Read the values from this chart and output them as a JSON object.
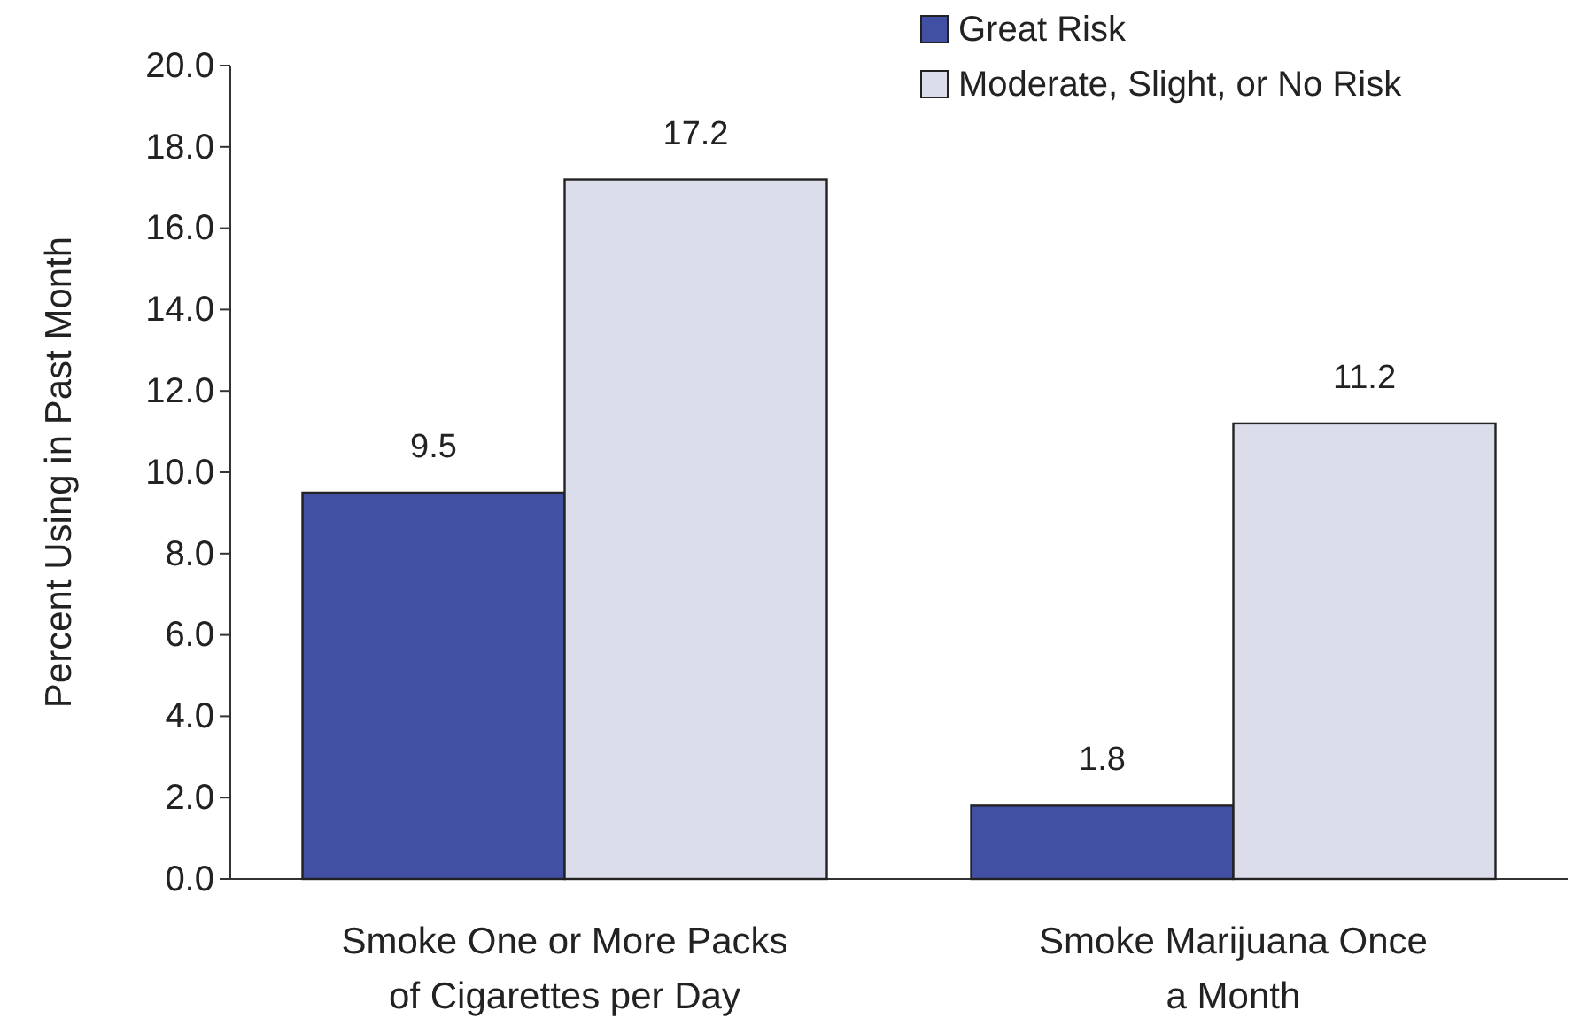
{
  "chart_data": {
    "type": "bar",
    "ylabel": "Percent Using in Past Month",
    "categories": [
      "Smoke One or More Packs\nof Cigarettes per Day",
      "Smoke Marijuana Once\na Month"
    ],
    "series": [
      {
        "name": "Great Risk",
        "color": "#4150a2",
        "values": [
          9.5,
          1.8
        ]
      },
      {
        "name": "Moderate, Slight, or No Risk",
        "color": "#dcddeb",
        "values": [
          17.2,
          11.2
        ]
      }
    ],
    "ylim": [
      0,
      20
    ],
    "yticks": [
      {
        "value": 0,
        "label": "0.0"
      },
      {
        "value": 2,
        "label": "2.0"
      },
      {
        "value": 4,
        "label": "4.0"
      },
      {
        "value": 6,
        "label": "6.0"
      },
      {
        "value": 8,
        "label": "8.0"
      },
      {
        "value": 10,
        "label": "10.0"
      },
      {
        "value": 12,
        "label": "12.0"
      },
      {
        "value": 14,
        "label": "14.0"
      },
      {
        "value": 16,
        "label": "16.0"
      },
      {
        "value": 18,
        "label": "18.0"
      },
      {
        "value": 20,
        "label": "20.0"
      }
    ],
    "data_labels": true,
    "legend": "top right",
    "grid": false
  }
}
